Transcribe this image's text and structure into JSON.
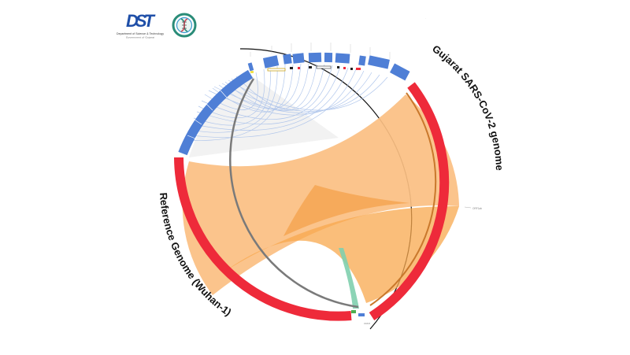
{
  "logos": {
    "dst": {
      "mark": "DST",
      "line1": "Department of Science & Technology",
      "line2": "Government of Gujarat"
    },
    "gbrc": {
      "icon": "dna-seal-icon"
    }
  },
  "labels": {
    "gujarat": "Gujarat SARS-CoV-2 genome",
    "reference": "Reference Genome (Wuhan-1)",
    "orf1ab": "ORF1ab",
    "small_label": "ORF8"
  },
  "colors": {
    "red_band": "#ee2a3a",
    "blue_band": "#4f7fd6",
    "orange_link": "#fbbf82",
    "orange_dark": "#f6a34a",
    "blue_link": "#a9c1ea",
    "green_link": "#7fcfae",
    "gray_ring": "#7a7a7a"
  }
}
